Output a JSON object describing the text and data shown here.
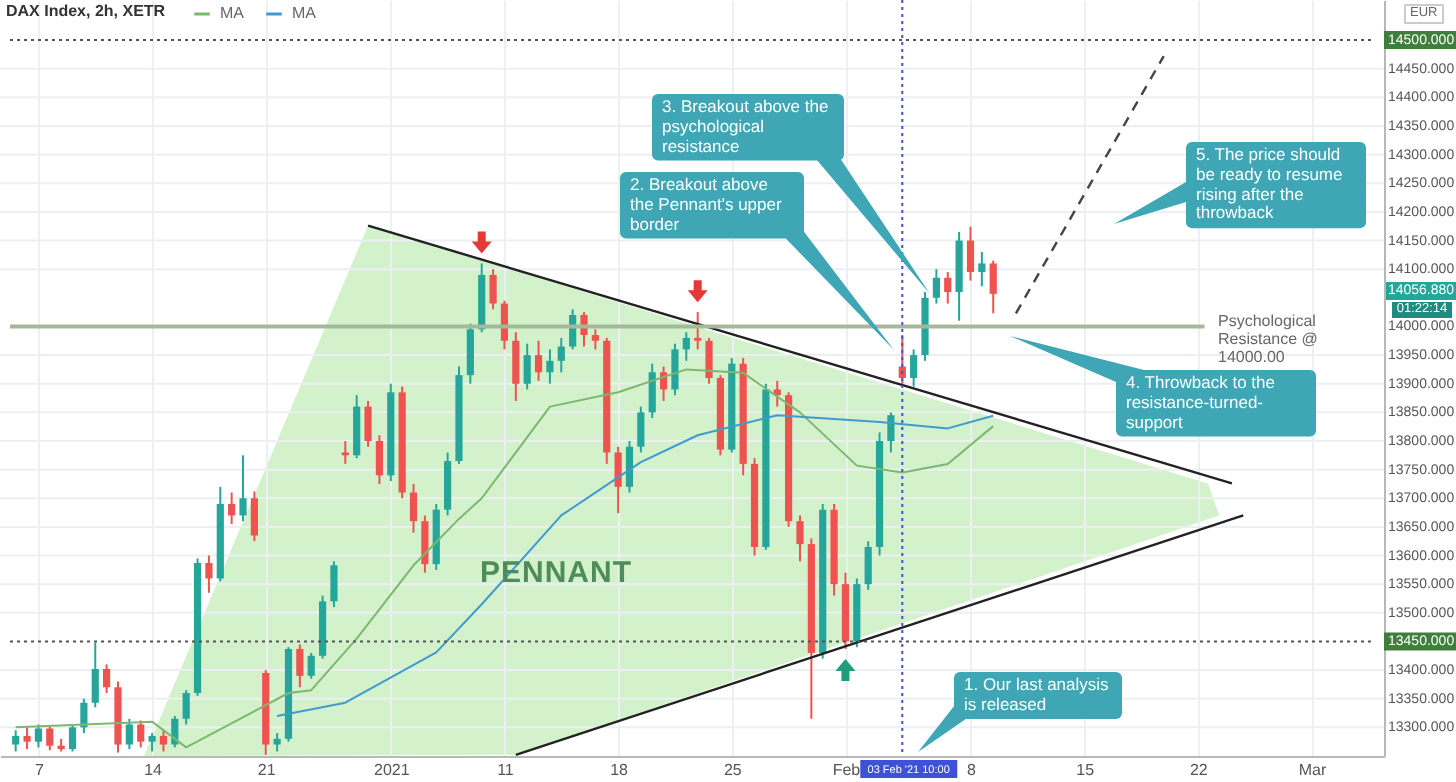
{
  "chart_data": {
    "type": "candlestick",
    "title": "DAX Index, 2h, XETR",
    "categories": [
      null,
      null,
      "7",
      null,
      null,
      null,
      null,
      null,
      null,
      null,
      null,
      null,
      "14",
      null,
      null,
      null,
      null,
      null,
      null,
      null,
      null,
      null,
      "21",
      null,
      null,
      null,
      null,
      null,
      null,
      null,
      null,
      null,
      null,
      "2021",
      null,
      null,
      null,
      null,
      null,
      null,
      null,
      null,
      null,
      "11",
      null,
      null,
      null,
      null,
      null,
      null,
      null,
      null,
      null,
      "18",
      null,
      null,
      null,
      null,
      null,
      null,
      null,
      null,
      null,
      "25",
      null,
      null,
      null,
      null,
      null,
      null,
      null,
      null,
      null,
      "Feb",
      null,
      null,
      null,
      null,
      "03 Feb '21  10:00",
      null,
      null,
      null,
      null,
      null,
      "8",
      null,
      null,
      null,
      null,
      null,
      null,
      null,
      null,
      null,
      "15",
      null,
      null,
      null,
      null,
      null,
      null,
      null,
      null,
      null,
      "22",
      null,
      null,
      null,
      null,
      null,
      null,
      null,
      null,
      null,
      "Mar",
      null,
      null,
      null,
      null,
      null
    ],
    "ohlc": [
      [
        13270,
        13295,
        13258,
        13285
      ],
      [
        13285,
        13300,
        13262,
        13275
      ],
      [
        13275,
        13305,
        13265,
        13298
      ],
      [
        13298,
        13302,
        13260,
        13268
      ],
      [
        13268,
        13280,
        13258,
        13262
      ],
      [
        13262,
        13305,
        13258,
        13300
      ],
      [
        13300,
        13350,
        13290,
        13343
      ],
      [
        13343,
        13448,
        13335,
        13402
      ],
      [
        13402,
        13410,
        13360,
        13370
      ],
      [
        13370,
        13380,
        13256,
        13270
      ],
      [
        13270,
        13315,
        13262,
        13305
      ],
      [
        13305,
        13312,
        13265,
        13275
      ],
      [
        13275,
        13290,
        13258,
        13285
      ],
      [
        13285,
        13295,
        13258,
        13270
      ],
      [
        13270,
        13320,
        13265,
        13315
      ],
      [
        13315,
        13365,
        13305,
        13360
      ],
      [
        13360,
        13595,
        13355,
        13587
      ],
      [
        13587,
        13600,
        13535,
        13560
      ],
      [
        13560,
        13720,
        13555,
        13690
      ],
      [
        13690,
        13710,
        13655,
        13670
      ],
      [
        13670,
        13775,
        13660,
        13700
      ],
      [
        13700,
        13712,
        13625,
        13635
      ],
      [
        13395,
        13400,
        13252,
        13270
      ],
      [
        13270,
        13290,
        13258,
        13280
      ],
      [
        13280,
        13440,
        13275,
        13437
      ],
      [
        13437,
        13445,
        13370,
        13390
      ],
      [
        13390,
        13430,
        13385,
        13425
      ],
      [
        13425,
        13530,
        13420,
        13520
      ],
      [
        13520,
        13590,
        13510,
        13583
      ],
      [
        13780,
        13800,
        13760,
        13775
      ],
      [
        13775,
        13880,
        13770,
        13860
      ],
      [
        13860,
        13870,
        13790,
        13800
      ],
      [
        13800,
        13810,
        13725,
        13740
      ],
      [
        13740,
        13900,
        13730,
        13885
      ],
      [
        13885,
        13895,
        13700,
        13710
      ],
      [
        13710,
        13725,
        13640,
        13660
      ],
      [
        13660,
        13670,
        13570,
        13585
      ],
      [
        13585,
        13690,
        13575,
        13680
      ],
      [
        13680,
        13780,
        13670,
        13765
      ],
      [
        13765,
        13930,
        13760,
        13915
      ],
      [
        13915,
        14005,
        13900,
        13995
      ],
      [
        13995,
        14110,
        13990,
        14090
      ],
      [
        14090,
        14100,
        14030,
        14040
      ],
      [
        14040,
        14045,
        13960,
        13975
      ],
      [
        13975,
        13990,
        13870,
        13900
      ],
      [
        13900,
        13970,
        13890,
        13950
      ],
      [
        13950,
        13975,
        13905,
        13920
      ],
      [
        13920,
        13960,
        13900,
        13940
      ],
      [
        13940,
        13980,
        13920,
        13965
      ],
      [
        13965,
        14030,
        13960,
        14020
      ],
      [
        14020,
        14025,
        13965,
        13985
      ],
      [
        13985,
        13995,
        13960,
        13975
      ],
      [
        13975,
        13980,
        13760,
        13780
      ],
      [
        13780,
        13790,
        13674,
        13720
      ],
      [
        13720,
        13800,
        13710,
        13790
      ],
      [
        13790,
        13860,
        13780,
        13850
      ],
      [
        13850,
        13935,
        13840,
        13920
      ],
      [
        13920,
        13930,
        13870,
        13890
      ],
      [
        13890,
        13970,
        13880,
        13960
      ],
      [
        13960,
        13990,
        13940,
        13980
      ],
      [
        13980,
        14025,
        13960,
        13975
      ],
      [
        13975,
        13980,
        13900,
        13910
      ],
      [
        13910,
        13915,
        13775,
        13785
      ],
      [
        13785,
        13945,
        13780,
        13935
      ],
      [
        13935,
        13945,
        13740,
        13760
      ],
      [
        13760,
        13770,
        13600,
        13615
      ],
      [
        13615,
        13900,
        13610,
        13890
      ],
      [
        13890,
        13905,
        13860,
        13880
      ],
      [
        13880,
        13885,
        13650,
        13660
      ],
      [
        13660,
        13670,
        13590,
        13620
      ],
      [
        13620,
        13630,
        13315,
        13430
      ],
      [
        13430,
        13690,
        13420,
        13680
      ],
      [
        13680,
        13690,
        13530,
        13550
      ],
      [
        13550,
        13570,
        13437,
        13450
      ],
      [
        13450,
        13560,
        13440,
        13550
      ],
      [
        13550,
        13625,
        13540,
        13615
      ],
      [
        13615,
        13815,
        13600,
        13800
      ],
      [
        13800,
        13850,
        13780,
        13845
      ],
      [
        13930,
        13985,
        13900,
        13910
      ],
      [
        13910,
        13960,
        13895,
        13950
      ],
      [
        13950,
        14060,
        13940,
        14050
      ],
      [
        14050,
        14100,
        14040,
        14085
      ],
      [
        14085,
        14095,
        14040,
        14060
      ],
      [
        14060,
        14165,
        14010,
        14150
      ],
      [
        14150,
        14174,
        14080,
        14095
      ],
      [
        14095,
        14130,
        14070,
        14110
      ],
      [
        14110,
        14115,
        14023,
        14056.88
      ],
      null,
      null,
      null,
      null,
      null,
      null,
      null,
      null,
      null,
      null,
      null,
      null,
      null,
      null,
      null,
      null,
      null,
      null,
      null,
      null,
      null,
      null,
      null,
      null,
      null,
      null,
      null,
      null,
      null,
      null,
      null,
      null,
      null
    ],
    "colors": [
      "#26a69a",
      "#ef5350",
      "#26a69a",
      "#ef5350",
      "#ef5350",
      "#26a69a",
      "#26a69a",
      "#26a69a",
      "#ef5350",
      "#ef5350",
      "#26a69a",
      "#ef5350",
      "#26a69a",
      "#ef5350",
      "#26a69a",
      "#26a69a",
      "#26a69a",
      "#ef5350",
      "#26a69a",
      "#ef5350",
      "#26a69a",
      "#ef5350",
      "#ef5350",
      "#26a69a",
      "#26a69a",
      "#ef5350",
      "#26a69a",
      "#26a69a",
      "#26a69a",
      "#ef5350",
      "#26a69a",
      "#ef5350",
      "#ef5350",
      "#26a69a",
      "#ef5350",
      "#ef5350",
      "#ef5350",
      "#26a69a",
      "#26a69a",
      "#26a69a",
      "#26a69a",
      "#26a69a",
      "#ef5350",
      "#ef5350",
      "#ef5350",
      "#26a69a",
      "#ef5350",
      "#26a69a",
      "#26a69a",
      "#26a69a",
      "#ef5350",
      "#ef5350",
      "#ef5350",
      "#ef5350",
      "#26a69a",
      "#26a69a",
      "#26a69a",
      "#ef5350",
      "#26a69a",
      "#26a69a",
      "#ef5350",
      "#ef5350",
      "#ef5350",
      "#26a69a",
      "#ef5350",
      "#ef5350",
      "#26a69a",
      "#ef5350",
      "#ef5350",
      "#ef5350",
      "#ef5350",
      "#26a69a",
      "#ef5350",
      "#ef5350",
      "#26a69a",
      "#26a69a",
      "#26a69a",
      "#26a69a",
      "#ef5350",
      "#26a69a",
      "#26a69a",
      "#26a69a",
      "#ef5350",
      "#26a69a",
      "#ef5350",
      "#26a69a",
      "#ef5350",
      null,
      null,
      null,
      null,
      null,
      null,
      null,
      null,
      null,
      null,
      null,
      null,
      null,
      null,
      null,
      null,
      null,
      null,
      null,
      null,
      null,
      null,
      null,
      null,
      null,
      null,
      null,
      null,
      null,
      null,
      null,
      null,
      null
    ],
    "series": [
      {
        "name": "MA",
        "type": "line",
        "color": "#7cb870",
        "values": [
          13300,
          null,
          null,
          null,
          null,
          null,
          null,
          null,
          null,
          null,
          null,
          null,
          13310,
          null,
          null,
          13265,
          null,
          null,
          null,
          null,
          null,
          null,
          null,
          null,
          13360,
          null,
          13365,
          null,
          null,
          null,
          13455,
          null,
          null,
          null,
          null,
          13583,
          null,
          null,
          null,
          13664,
          null,
          13700,
          null,
          null,
          null,
          null,
          null,
          13860,
          null,
          null,
          null,
          null,
          null,
          13885,
          null,
          null,
          null,
          null,
          null,
          13925,
          null,
          null,
          null,
          null,
          13919,
          null,
          null,
          null,
          null,
          13850,
          null,
          null,
          null,
          null,
          13757,
          null,
          null,
          null,
          13745,
          null,
          null,
          null,
          13760,
          null,
          null,
          null,
          13826,
          null,
          null,
          null,
          null,
          null,
          null,
          null,
          null,
          null,
          null,
          null,
          null,
          null,
          null,
          null,
          null,
          null,
          null,
          null,
          null,
          null,
          null,
          null,
          null,
          null,
          null,
          null,
          null,
          null,
          null,
          null,
          null,
          null
        ]
      },
      {
        "name": "MA",
        "type": "line",
        "color": "#3f9bcf",
        "values": [
          null,
          null,
          null,
          null,
          null,
          null,
          null,
          null,
          null,
          null,
          null,
          null,
          null,
          null,
          null,
          null,
          null,
          null,
          null,
          null,
          null,
          null,
          null,
          13320,
          null,
          null,
          null,
          null,
          null,
          13343,
          null,
          null,
          null,
          null,
          null,
          null,
          null,
          13431,
          null,
          null,
          null,
          13515,
          null,
          null,
          null,
          null,
          null,
          null,
          13670,
          null,
          null,
          null,
          null,
          null,
          null,
          13763,
          null,
          null,
          null,
          null,
          13810,
          null,
          null,
          null,
          null,
          null,
          null,
          13845,
          null,
          null,
          null,
          null,
          null,
          null,
          null,
          null,
          13833,
          null,
          null,
          null,
          null,
          null,
          13822,
          null,
          null,
          null,
          13844,
          null,
          null,
          null,
          null,
          null,
          null,
          null,
          null,
          null,
          null,
          null,
          null,
          null,
          null,
          null,
          null,
          null,
          null,
          null,
          null,
          null,
          null,
          null,
          null,
          null,
          null,
          null,
          null,
          null,
          null,
          null,
          null,
          null
        ]
      },
      {
        "type": "line",
        "color": "#222222",
        "values": [
          null,
          null,
          null,
          null,
          null,
          null,
          null,
          null,
          null,
          null,
          null,
          null,
          null,
          null,
          null,
          null,
          null,
          null,
          null,
          null,
          null,
          null,
          null,
          null,
          null,
          null,
          null,
          null,
          null,
          null,
          null,
          14176,
          null,
          null,
          null,
          null,
          null,
          null,
          null,
          null,
          null,
          null,
          null,
          null,
          null,
          null,
          null,
          null,
          null,
          null,
          null,
          null,
          null,
          null,
          null,
          null,
          null,
          null,
          null,
          null,
          null,
          null,
          null,
          null,
          null,
          null,
          null,
          null,
          null,
          null,
          null,
          null,
          null,
          null,
          null,
          null,
          null,
          null,
          null,
          null,
          null,
          null,
          null,
          null,
          null,
          null,
          null,
          null,
          null,
          null,
          null,
          null,
          null,
          null,
          null,
          null,
          null,
          null,
          null,
          null,
          null,
          null,
          null,
          null,
          null,
          null,
          null,
          13726,
          null,
          null,
          null,
          null,
          null,
          null,
          null,
          null,
          null,
          null,
          null,
          null
        ]
      },
      {
        "type": "line",
        "color": "#222222",
        "values": [
          null,
          null,
          null,
          null,
          null,
          null,
          null,
          null,
          null,
          null,
          null,
          null,
          null,
          null,
          null,
          null,
          null,
          null,
          null,
          null,
          null,
          null,
          null,
          null,
          null,
          null,
          null,
          null,
          null,
          null,
          null,
          null,
          null,
          null,
          null,
          null,
          null,
          null,
          null,
          null,
          null,
          null,
          null,
          null,
          13252,
          null,
          null,
          null,
          null,
          null,
          null,
          null,
          null,
          null,
          null,
          null,
          null,
          null,
          null,
          null,
          null,
          null,
          null,
          null,
          null,
          null,
          null,
          null,
          null,
          null,
          null,
          null,
          null,
          null,
          null,
          null,
          null,
          null,
          null,
          null,
          null,
          null,
          null,
          null,
          null,
          null,
          null,
          null,
          null,
          null,
          null,
          null,
          null,
          null,
          null,
          null,
          null,
          null,
          null,
          null,
          null,
          null,
          null,
          null,
          null,
          null,
          null,
          null,
          13670,
          null,
          null,
          null,
          null,
          null,
          null,
          null,
          null,
          null,
          null,
          null
        ]
      },
      {
        "type": "line",
        "color": "#444444",
        "line_style": "dashed",
        "values": [
          null,
          null,
          null,
          null,
          null,
          null,
          null,
          null,
          null,
          null,
          null,
          null,
          null,
          null,
          null,
          null,
          null,
          null,
          null,
          null,
          null,
          null,
          null,
          null,
          null,
          null,
          null,
          null,
          null,
          null,
          null,
          null,
          null,
          null,
          null,
          null,
          null,
          null,
          null,
          null,
          null,
          null,
          null,
          null,
          null,
          null,
          null,
          null,
          null,
          null,
          null,
          null,
          null,
          null,
          null,
          null,
          null,
          null,
          null,
          null,
          null,
          null,
          null,
          null,
          null,
          null,
          null,
          null,
          null,
          null,
          null,
          null,
          null,
          null,
          null,
          null,
          null,
          null,
          null,
          null,
          null,
          null,
          null,
          null,
          null,
          null,
          null,
          null,
          14023,
          null,
          null,
          null,
          null,
          null,
          null,
          null,
          null,
          null,
          null,
          null,
          null,
          14472,
          null,
          null,
          null,
          null,
          null,
          null,
          null,
          null,
          null,
          null,
          null,
          null,
          null,
          null,
          null,
          null,
          null,
          null
        ]
      }
    ],
    "ylim": [
      13250,
      14570
    ],
    "yticks": [
      {
        "value": 13300,
        "label": "13300.000"
      },
      {
        "value": 13350,
        "label": "13350.000"
      },
      {
        "value": 13400,
        "label": "13400.000"
      },
      {
        "value": 13500,
        "label": "13500.000"
      },
      {
        "value": 13550,
        "label": "13550.000"
      },
      {
        "value": 13600,
        "label": "13600.000"
      },
      {
        "value": 13650,
        "label": "13650.000"
      },
      {
        "value": 13700,
        "label": "13700.000"
      },
      {
        "value": 13750,
        "label": "13750.000"
      },
      {
        "value": 13800,
        "label": "13800.000"
      },
      {
        "value": 13850,
        "label": "13850.000"
      },
      {
        "value": 13900,
        "label": "13900.000"
      },
      {
        "value": 13950,
        "label": "13950.000"
      },
      {
        "value": 14000,
        "label": "14000.000"
      },
      {
        "value": 14100,
        "label": "14100.000"
      },
      {
        "value": 14150,
        "label": "14150.000"
      },
      {
        "value": 14200,
        "label": "14200.000"
      },
      {
        "value": 14250,
        "label": "14250.000"
      },
      {
        "value": 14300,
        "label": "14300.000"
      },
      {
        "value": 14350,
        "label": "14350.000"
      },
      {
        "value": 14400,
        "label": "14400.000"
      },
      {
        "value": 14450,
        "label": "14450.000"
      }
    ],
    "grid": true,
    "legend": "top left",
    "marker": "none",
    "ref_lines": [
      {
        "axis": "y",
        "value": 14500,
        "label": "14500.000",
        "line_style": "dotted",
        "color": "#555555"
      },
      {
        "axis": "y",
        "value": 13450,
        "label": "13450.000",
        "line_style": "dotted",
        "color": "#555555"
      },
      {
        "axis": "y",
        "value": 14000,
        "label": "Psychological Resistance @ 14000.00",
        "color": "#a3b99a"
      },
      {
        "axis": "x",
        "value": "03 Feb '21  10:00",
        "line_style": "dotted",
        "color": "#3f51d6"
      }
    ],
    "annotations": [
      "1. Our last analysis is released",
      "2. Breakout above the Pennant's upper border",
      "3. Breakout above the psychological resistance",
      "4. Throwback to the resistance-turned-support",
      "5. The price should be ready to resume rising after the throwback",
      "PENNANT",
      "14056.880",
      "01:22:14",
      "EUR"
    ]
  }
}
